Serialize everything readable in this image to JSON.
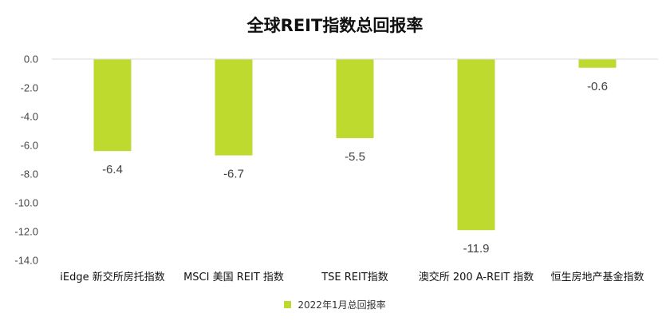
{
  "chart_data": {
    "type": "bar",
    "title": "全球REIT指数总回报率",
    "categories": [
      "iEdge 新交所房托指数",
      "MSCI 美国 REIT 指数",
      "TSE REIT指数",
      "澳交所 200 A-REIT 指数",
      "恒生房地产基金指数"
    ],
    "series": [
      {
        "name": "2022年1月总回报率",
        "values": [
          -6.4,
          -6.7,
          -5.5,
          -11.9,
          -0.6
        ],
        "color": "#bfda2f"
      }
    ],
    "data_labels": [
      "-6.4",
      "-6.7",
      "-5.5",
      "-11.9",
      "-0.6"
    ],
    "ylim": [
      -14.0,
      0.0
    ],
    "y_ticks": [
      0.0,
      -2.0,
      -4.0,
      -6.0,
      -8.0,
      -10.0,
      -12.0,
      -14.0
    ],
    "y_tick_labels": [
      "0.0",
      "-2.0",
      "-4.0",
      "-6.0",
      "-8.0",
      "-10.0",
      "-12.0",
      "-14.0"
    ],
    "xlabel": "",
    "ylabel": "",
    "grid": false,
    "legend": "bottom"
  }
}
